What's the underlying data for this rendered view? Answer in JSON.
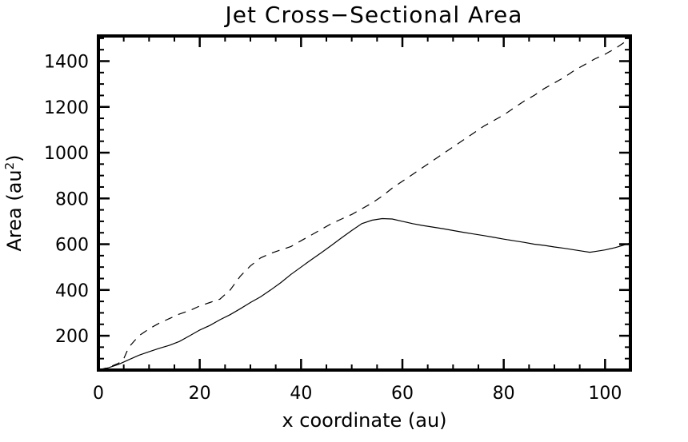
{
  "chart_data": {
    "type": "line",
    "title": "Jet Cross−Sectional Area",
    "xlabel": "x coordinate (au)",
    "ylabel": "Area (au",
    "ylabel_sup": "2",
    "ylabel_end": ")",
    "xlim": [
      0,
      105
    ],
    "ylim": [
      50,
      1510
    ],
    "xticks": [
      0,
      20,
      40,
      60,
      80,
      100
    ],
    "xtick_labels": [
      "0",
      "20",
      "40",
      "60",
      "80",
      "100"
    ],
    "yticks": [
      200,
      400,
      600,
      800,
      1000,
      1200,
      1400
    ],
    "ytick_labels": [
      "200",
      "400",
      "600",
      "800",
      "1000",
      "1200",
      "1400"
    ],
    "grid": false,
    "series": [
      {
        "name": "solid",
        "style": "solid",
        "x": [
          0,
          2,
          4,
          6,
          8,
          10,
          12,
          14,
          16,
          18,
          20,
          22,
          24,
          26,
          28,
          30,
          32,
          34,
          36,
          38,
          40,
          42,
          44,
          46,
          48,
          50,
          52,
          54,
          56,
          58,
          60,
          62,
          64,
          66,
          68,
          70,
          72,
          74,
          76,
          78,
          80,
          82,
          84,
          86,
          88,
          90,
          92,
          94,
          96,
          97,
          98,
          100,
          102,
          104,
          105
        ],
        "values": [
          50,
          60,
          75,
          95,
          115,
          130,
          145,
          158,
          175,
          200,
          225,
          245,
          270,
          292,
          318,
          345,
          370,
          400,
          432,
          468,
          500,
          532,
          563,
          595,
          628,
          660,
          690,
          705,
          712,
          710,
          700,
          690,
          682,
          675,
          668,
          660,
          652,
          645,
          638,
          630,
          622,
          615,
          608,
          600,
          595,
          588,
          582,
          575,
          568,
          565,
          568,
          575,
          585,
          598,
          605
        ]
      },
      {
        "name": "dashed",
        "style": "dashed",
        "x": [
          0,
          2,
          4,
          5,
          6,
          8,
          10,
          12,
          14,
          16,
          18,
          20,
          22,
          24,
          26,
          28,
          30,
          32,
          34,
          36,
          38,
          40,
          42,
          44,
          46,
          48,
          50,
          52,
          54,
          56,
          58,
          60,
          62,
          64,
          66,
          68,
          70,
          72,
          74,
          76,
          78,
          80,
          82,
          84,
          86,
          88,
          90,
          92,
          94,
          96,
          98,
          100,
          102,
          104,
          105
        ],
        "values": [
          50,
          62,
          80,
          100,
          150,
          200,
          230,
          255,
          275,
          295,
          310,
          330,
          345,
          360,
          400,
          460,
          505,
          540,
          560,
          575,
          590,
          615,
          640,
          665,
          690,
          710,
          730,
          755,
          780,
          810,
          845,
          875,
          905,
          935,
          965,
          995,
          1025,
          1055,
          1085,
          1115,
          1140,
          1165,
          1195,
          1225,
          1250,
          1280,
          1305,
          1330,
          1360,
          1385,
          1410,
          1430,
          1455,
          1485,
          1500
        ]
      }
    ]
  }
}
